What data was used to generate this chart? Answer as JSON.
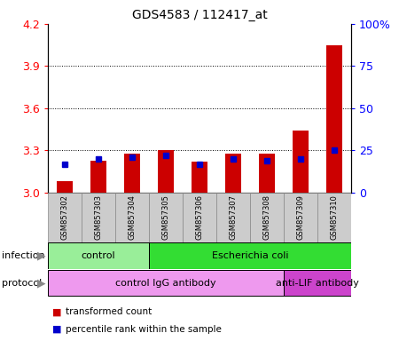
{
  "title": "GDS4583 / 112417_at",
  "samples": [
    "GSM857302",
    "GSM857303",
    "GSM857304",
    "GSM857305",
    "GSM857306",
    "GSM857307",
    "GSM857308",
    "GSM857309",
    "GSM857310"
  ],
  "red_values": [
    3.08,
    3.23,
    3.28,
    3.305,
    3.22,
    3.275,
    3.275,
    3.44,
    4.05
  ],
  "blue_values": [
    17,
    20,
    21,
    22,
    17,
    20,
    19,
    20,
    25
  ],
  "ylim_left": [
    3.0,
    4.2
  ],
  "ylim_right": [
    0,
    100
  ],
  "yticks_left": [
    3.0,
    3.3,
    3.6,
    3.9,
    4.2
  ],
  "yticks_right": [
    0,
    25,
    50,
    75,
    100
  ],
  "ytick_labels_right": [
    "0",
    "25",
    "50",
    "75",
    "100%"
  ],
  "hlines": [
    3.3,
    3.6,
    3.9
  ],
  "infection_groups": [
    {
      "label": "control",
      "start": 0,
      "end": 3,
      "color": "#99EE99"
    },
    {
      "label": "Escherichia coli",
      "start": 3,
      "end": 9,
      "color": "#33DD33"
    }
  ],
  "protocol_groups": [
    {
      "label": "control IgG antibody",
      "start": 0,
      "end": 7,
      "color": "#EE99EE"
    },
    {
      "label": "anti-LIF antibody",
      "start": 7,
      "end": 9,
      "color": "#CC44CC"
    }
  ],
  "legend_items": [
    {
      "color": "#CC0000",
      "label": "transformed count"
    },
    {
      "color": "#0000CC",
      "label": "percentile rank within the sample"
    }
  ],
  "bar_width": 0.45,
  "plot_bg": "#FFFFFF"
}
